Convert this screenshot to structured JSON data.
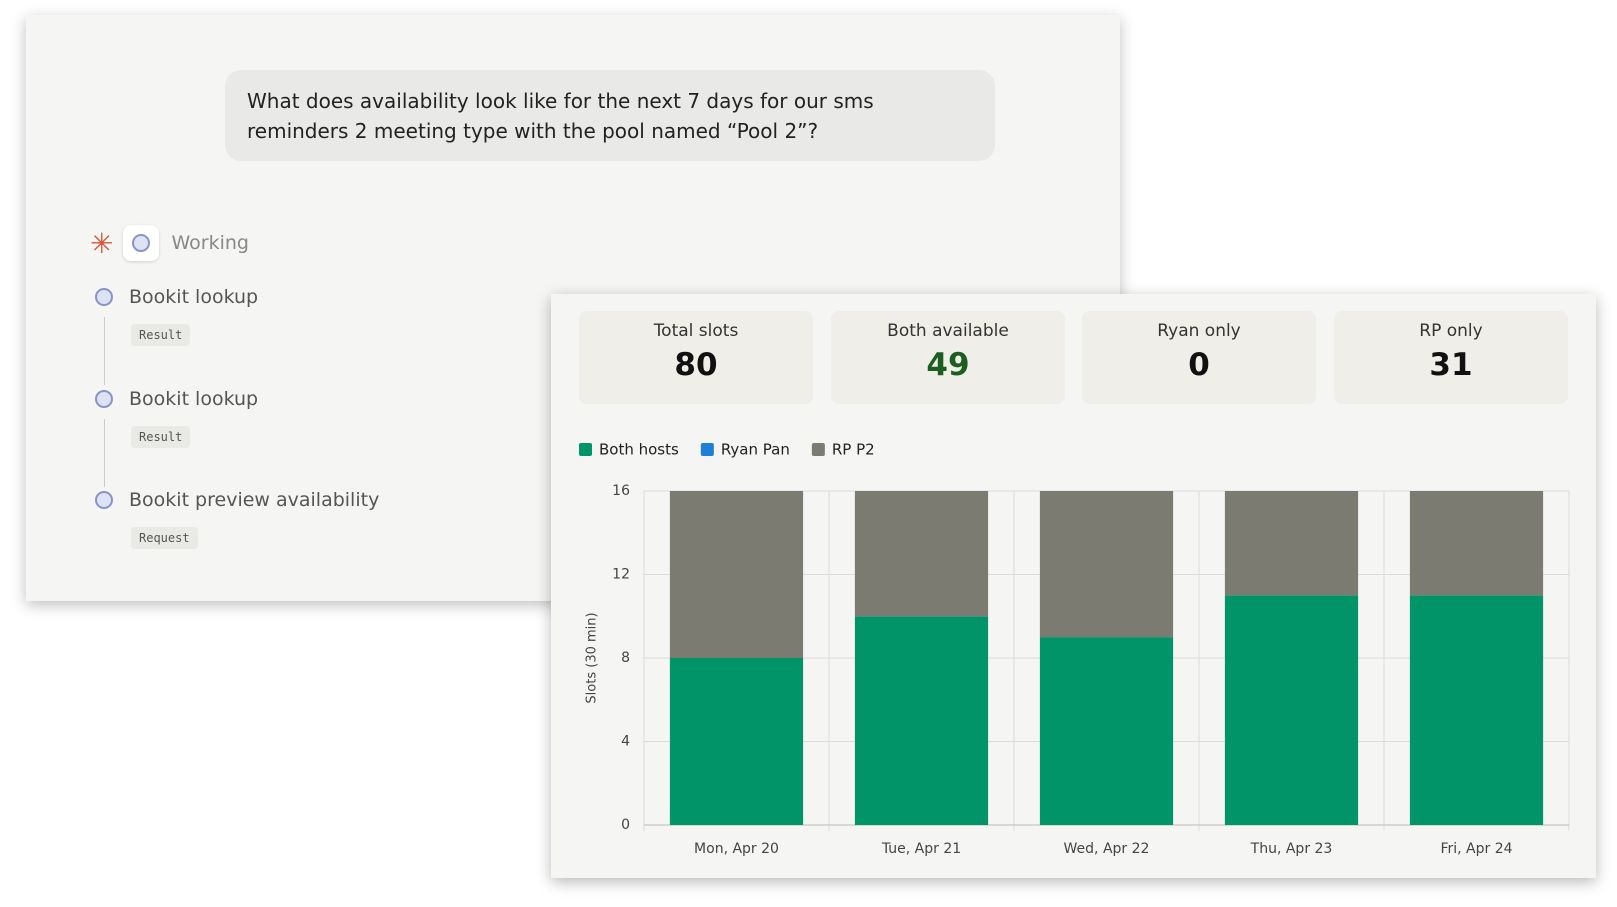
{
  "chat": {
    "message": "What does availability look like for the next 7 days for our sms reminders 2 meeting type with the pool named “Pool 2”?",
    "status": "Working",
    "steps": [
      {
        "title": "Bookit lookup",
        "badge": "Result"
      },
      {
        "title": "Bookit lookup",
        "badge": "Result"
      },
      {
        "title": "Bookit preview availability",
        "badge": "Request"
      }
    ]
  },
  "stats": [
    {
      "label": "Total slots",
      "value": 80
    },
    {
      "label": "Both available",
      "value": 49
    },
    {
      "label": "Ryan only",
      "value": 0
    },
    {
      "label": "RP only",
      "value": 31
    }
  ],
  "chart_data": {
    "type": "stacked_bar",
    "y_label": "Slots (30 min)",
    "categories": [
      "Mon, Apr 20",
      "Tue, Apr 21",
      "Wed, Apr 22",
      "Thu, Apr 23",
      "Fri, Apr 24"
    ],
    "series": [
      {
        "name": "Both hosts",
        "color": "#009468",
        "values": [
          8,
          10,
          9,
          11,
          11
        ]
      },
      {
        "name": "Ryan Pan",
        "color": "#1f7fd6",
        "values": [
          0,
          0,
          0,
          0,
          0
        ]
      },
      {
        "name": "RP P2",
        "color": "#7b7b72",
        "values": [
          8,
          6,
          7,
          5,
          5
        ]
      }
    ],
    "ylim": [
      0,
      16
    ],
    "yticks": [
      0,
      4,
      8,
      12,
      16
    ],
    "grid": true,
    "legend": "top-left"
  }
}
